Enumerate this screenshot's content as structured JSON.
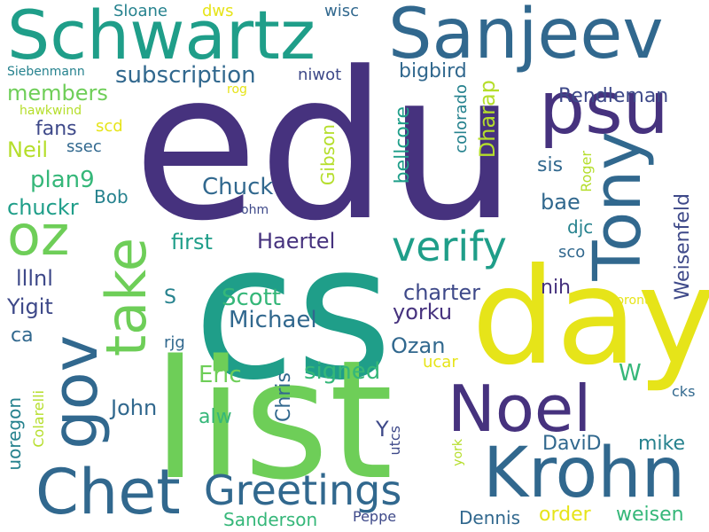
{
  "palette": {
    "purple": "#46327e",
    "indigo": "#3e4989",
    "blue": "#31688e",
    "teal": "#26828e",
    "aqua": "#1f9e89",
    "green": "#35b779",
    "lime": "#6ece58",
    "yellowgreen": "#b5de2b",
    "yellow": "#e6e419"
  },
  "words": [
    {
      "text": "edu",
      "color": "purple"
    },
    {
      "text": "cs",
      "color": "aqua"
    },
    {
      "text": "list",
      "color": "lime"
    },
    {
      "text": "day",
      "color": "yellow"
    },
    {
      "text": "Schwartz",
      "color": "aqua"
    },
    {
      "text": "Sanjeev",
      "color": "blue"
    },
    {
      "text": "psu",
      "color": "purple"
    },
    {
      "text": "Tony",
      "color": "blue"
    },
    {
      "text": "oz",
      "color": "lime"
    },
    {
      "text": "take",
      "color": "lime"
    },
    {
      "text": "gov",
      "color": "blue"
    },
    {
      "text": "Noel",
      "color": "purple"
    },
    {
      "text": "Krohn",
      "color": "blue"
    },
    {
      "text": "Chet",
      "color": "blue"
    },
    {
      "text": "Greetings",
      "color": "blue"
    },
    {
      "text": "verify",
      "color": "aqua"
    },
    {
      "text": "Sloane",
      "color": "teal"
    },
    {
      "text": "dws",
      "color": "yellow"
    },
    {
      "text": "wisc",
      "color": "blue"
    },
    {
      "text": "Siebenmann",
      "color": "teal"
    },
    {
      "text": "subscription",
      "color": "blue"
    },
    {
      "text": "niwot",
      "color": "indigo"
    },
    {
      "text": "bigbird",
      "color": "blue"
    },
    {
      "text": "Rendleman",
      "color": "indigo"
    },
    {
      "text": "members",
      "color": "lime"
    },
    {
      "text": "rog",
      "color": "yellow"
    },
    {
      "text": "hawkwind",
      "color": "yellowgreen"
    },
    {
      "text": "scd",
      "color": "yellow"
    },
    {
      "text": "fans",
      "color": "indigo"
    },
    {
      "text": "ssec",
      "color": "blue"
    },
    {
      "text": "Neil",
      "color": "yellowgreen"
    },
    {
      "text": "bellcore",
      "color": "aqua"
    },
    {
      "text": "Gibson",
      "color": "yellowgreen"
    },
    {
      "text": "colorado",
      "color": "teal"
    },
    {
      "text": "Dharap",
      "color": "yellowgreen"
    },
    {
      "text": "Roger",
      "color": "yellowgreen"
    },
    {
      "text": "sis",
      "color": "blue"
    },
    {
      "text": "plan9",
      "color": "green"
    },
    {
      "text": "Bob",
      "color": "teal"
    },
    {
      "text": "chuckr",
      "color": "aqua"
    },
    {
      "text": "Chuck",
      "color": "blue"
    },
    {
      "text": "ohm",
      "color": "indigo"
    },
    {
      "text": "bae",
      "color": "blue"
    },
    {
      "text": "djc",
      "color": "teal"
    },
    {
      "text": "Weisenfeld",
      "color": "indigo"
    },
    {
      "text": "first",
      "color": "aqua"
    },
    {
      "text": "Haertel",
      "color": "purple"
    },
    {
      "text": "sco",
      "color": "blue"
    },
    {
      "text": "S",
      "color": "teal"
    },
    {
      "text": "Scott",
      "color": "green"
    },
    {
      "text": "charter",
      "color": "indigo"
    },
    {
      "text": "nih",
      "color": "purple"
    },
    {
      "text": "toronto",
      "color": "yellow"
    },
    {
      "text": "lllnl",
      "color": "indigo"
    },
    {
      "text": "Yigit",
      "color": "indigo"
    },
    {
      "text": "Michael",
      "color": "blue"
    },
    {
      "text": "yorku",
      "color": "purple"
    },
    {
      "text": "ca",
      "color": "blue"
    },
    {
      "text": "rjg",
      "color": "blue"
    },
    {
      "text": "Ozan",
      "color": "blue"
    },
    {
      "text": "signed",
      "color": "green"
    },
    {
      "text": "ucar",
      "color": "yellow"
    },
    {
      "text": "W",
      "color": "green"
    },
    {
      "text": "Eric",
      "color": "lime"
    },
    {
      "text": "Chris",
      "color": "blue"
    },
    {
      "text": "John",
      "color": "blue"
    },
    {
      "text": "alw",
      "color": "green"
    },
    {
      "text": "cks",
      "color": "blue"
    },
    {
      "text": "uoregon",
      "color": "teal"
    },
    {
      "text": "Colarelli",
      "color": "yellowgreen"
    },
    {
      "text": "Y",
      "color": "indigo"
    },
    {
      "text": "utcs",
      "color": "indigo"
    },
    {
      "text": "DaviD",
      "color": "blue"
    },
    {
      "text": "mike",
      "color": "teal"
    },
    {
      "text": "york",
      "color": "yellowgreen"
    },
    {
      "text": "Sanderson",
      "color": "green"
    },
    {
      "text": "Peppe",
      "color": "indigo"
    },
    {
      "text": "Dennis",
      "color": "blue"
    },
    {
      "text": "order",
      "color": "yellow"
    },
    {
      "text": "weisen",
      "color": "green"
    }
  ]
}
